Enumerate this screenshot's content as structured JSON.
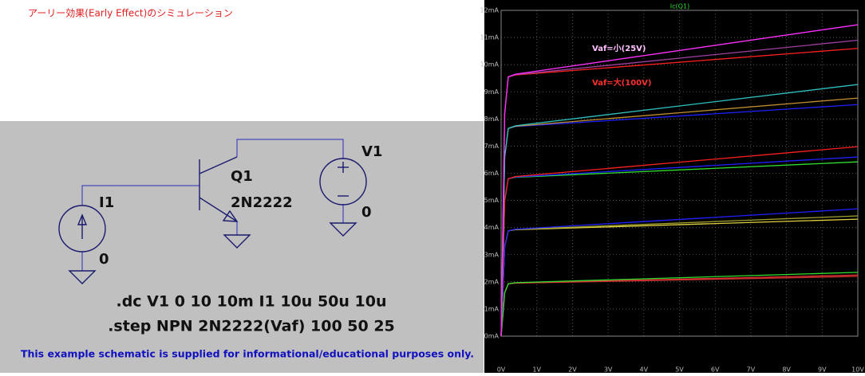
{
  "title": "アーリー効果(Early Effect)のシミュレーション",
  "schematic": {
    "transistor": {
      "name": "Q1",
      "model": "2N2222"
    },
    "current_source": {
      "name": "I1",
      "node": "0"
    },
    "voltage_source": {
      "name": "V1",
      "node": "0"
    },
    "directives": [
      ".dc V1 0 10 10m I1 10u 50u 10u",
      ".step NPN 2N2222(Vaf) 100 50 25"
    ],
    "footer": "This example schematic is supplied for informational/educational purposes only."
  },
  "plot": {
    "type": "line",
    "title": "Ic(Q1)",
    "xlim": [
      0,
      10
    ],
    "ylim": [
      0,
      12
    ],
    "xticks": [
      {
        "value": 0,
        "label": "0V"
      },
      {
        "value": 1,
        "label": "1V"
      },
      {
        "value": 2,
        "label": "2V"
      },
      {
        "value": 3,
        "label": "3V"
      },
      {
        "value": 4,
        "label": "4V"
      },
      {
        "value": 5,
        "label": "5V"
      },
      {
        "value": 6,
        "label": "6V"
      },
      {
        "value": 7,
        "label": "7V"
      },
      {
        "value": 8,
        "label": "8V"
      },
      {
        "value": 9,
        "label": "9V"
      },
      {
        "value": 10,
        "label": "10V"
      }
    ],
    "yticks": [
      {
        "value": 0,
        "label": "0mA"
      },
      {
        "value": 1,
        "label": "1mA"
      },
      {
        "value": 2,
        "label": "2mA"
      },
      {
        "value": 3,
        "label": "3mA"
      },
      {
        "value": 4,
        "label": "4mA"
      },
      {
        "value": 5,
        "label": "5mA"
      },
      {
        "value": 6,
        "label": "6mA"
      },
      {
        "value": 7,
        "label": "7mA"
      },
      {
        "value": 8,
        "label": "8mA"
      },
      {
        "value": 9,
        "label": "9mA"
      },
      {
        "value": 10,
        "label": "10mA"
      },
      {
        "value": 11,
        "label": "11mA"
      },
      {
        "value": 12,
        "label": "12mA"
      }
    ],
    "grid": true,
    "annotations": [
      "Vaf=小(25V)",
      "Vaf=大(100V)"
    ],
    "x": [
      0,
      0.1,
      0.2,
      0.4,
      10
    ],
    "series": [
      {
        "color": "#c03030",
        "values": [
          0,
          1.6,
          1.93,
          1.95,
          2.2
        ]
      },
      {
        "color": "#e03030",
        "values": [
          0,
          1.6,
          1.93,
          1.96,
          2.25
        ]
      },
      {
        "color": "#30e030",
        "values": [
          0,
          1.6,
          1.93,
          1.97,
          2.35
        ]
      },
      {
        "color": "#e0d040",
        "values": [
          0,
          3.3,
          3.88,
          3.92,
          4.31
        ]
      },
      {
        "color": "#a0a030",
        "values": [
          0,
          3.3,
          3.88,
          3.93,
          4.43
        ]
      },
      {
        "color": "#2020ff",
        "values": [
          0,
          3.3,
          3.88,
          3.94,
          4.69
        ]
      },
      {
        "color": "#30e030",
        "values": [
          0,
          5.0,
          5.8,
          5.85,
          6.42
        ]
      },
      {
        "color": "#2020ff",
        "values": [
          0,
          5.0,
          5.8,
          5.86,
          6.6
        ]
      },
      {
        "color": "#ff2020",
        "values": [
          0,
          5.0,
          5.8,
          5.88,
          6.98
        ]
      },
      {
        "color": "#2020ff",
        "values": [
          0,
          6.6,
          7.65,
          7.72,
          8.53
        ]
      },
      {
        "color": "#c09030",
        "values": [
          0,
          6.6,
          7.65,
          7.73,
          8.77
        ]
      },
      {
        "color": "#30c0c0",
        "values": [
          0,
          6.6,
          7.65,
          7.75,
          9.27
        ]
      },
      {
        "color": "#ff2020",
        "values": [
          0,
          8.2,
          9.55,
          9.62,
          10.6
        ]
      },
      {
        "color": "#a040a0",
        "values": [
          0,
          8.2,
          9.55,
          9.63,
          10.9
        ]
      },
      {
        "color": "#ff30ff",
        "values": [
          0,
          8.2,
          9.55,
          9.65,
          11.47
        ]
      }
    ]
  }
}
